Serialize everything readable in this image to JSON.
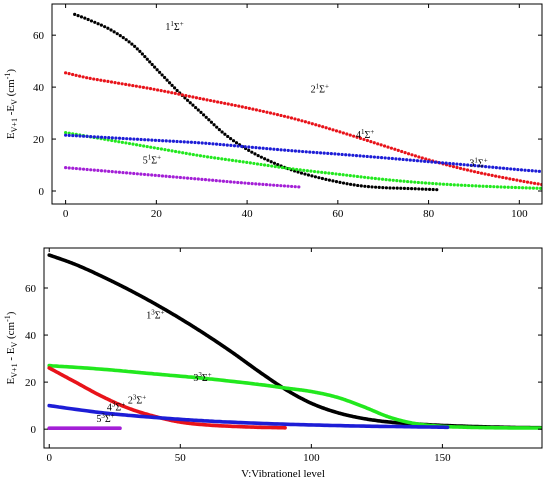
{
  "chart_data": [
    {
      "type": "scatter",
      "panel": "top",
      "title": "",
      "xlabel": "",
      "ylabel": "E_{v+1} - E_v (cm^{-1})",
      "ylabel_parts": {
        "main": "E",
        "sub1": "V+1",
        "mid": " -E",
        "sub2": "V",
        "unit": " (cm",
        "sup": "-1",
        "end": ")"
      },
      "xlim": [
        -3,
        105
      ],
      "ylim": [
        -5,
        72
      ],
      "xticks": [
        0,
        20,
        40,
        60,
        80,
        100
      ],
      "yticks": [
        0,
        20,
        40,
        60
      ],
      "grid": false,
      "series": [
        {
          "label": "1¹Σ⁺",
          "color": "#000000",
          "marker": "dot",
          "x": [
            2,
            5,
            10,
            15,
            20,
            25,
            30,
            35,
            40,
            45,
            50,
            55,
            60,
            65,
            70,
            75,
            82
          ],
          "y": [
            68,
            66,
            62,
            56,
            47,
            38,
            30,
            22,
            16,
            11.5,
            8,
            5.5,
            3.5,
            2,
            1.3,
            1,
            0.5
          ]
        },
        {
          "label": "2¹Σ⁺",
          "color": "#e8131a",
          "marker": "dot",
          "x": [
            0,
            5,
            10,
            20,
            30,
            40,
            50,
            60,
            70,
            80,
            90,
            100,
            105
          ],
          "y": [
            45.5,
            43.5,
            42,
            39,
            35.5,
            32,
            28,
            23,
            17.5,
            12,
            7.5,
            4,
            2.5
          ]
        },
        {
          "label": "3¹Σ⁺",
          "color": "#22e81e",
          "marker": "dot",
          "x": [
            0,
            10,
            20,
            30,
            40,
            50,
            60,
            70,
            80,
            90,
            100,
            105
          ],
          "y": [
            22.5,
            19.5,
            16.5,
            13.5,
            11,
            8.5,
            6.5,
            4.5,
            3,
            2,
            1.3,
            1
          ]
        },
        {
          "label": "4¹Σ⁺",
          "color": "#1d1dd6",
          "marker": "dot",
          "x": [
            0,
            10,
            20,
            30,
            40,
            50,
            60,
            70,
            80,
            90,
            100,
            105
          ],
          "y": [
            21.5,
            20.5,
            19.5,
            18.5,
            17,
            15.5,
            14.2,
            12.8,
            11.3,
            9.8,
            8.2,
            7.5
          ]
        },
        {
          "label": "5¹Σ⁺",
          "color": "#a31fd6",
          "marker": "dot",
          "x": [
            0,
            10,
            20,
            30,
            40,
            52
          ],
          "y": [
            9,
            7.5,
            6,
            4.5,
            3,
            1.5
          ]
        }
      ],
      "annotations": [
        {
          "series": "1¹Σ⁺",
          "text": "1",
          "sup": "1",
          "tail": "Σ",
          "sup2": "+",
          "at_x": 22,
          "at_y": 62
        },
        {
          "series": "2¹Σ⁺",
          "text": "2",
          "sup": "1",
          "tail": "Σ",
          "sup2": "+",
          "at_x": 54,
          "at_y": 38
        },
        {
          "series": "4¹Σ⁺",
          "text": "4",
          "sup": "1",
          "tail": "Σ",
          "sup2": "+",
          "at_x": 64,
          "at_y": 20.5
        },
        {
          "series": "3¹Σ⁺",
          "text": "3",
          "sup": "1",
          "tail": "Σ",
          "sup2": "+",
          "at_x": 89,
          "at_y": 9.5
        },
        {
          "series": "5¹Σ⁺",
          "text": "5",
          "sup": "1",
          "tail": "Σ",
          "sup2": "+",
          "at_x": 17,
          "at_y": 10.5
        }
      ]
    },
    {
      "type": "line",
      "panel": "bottom",
      "title": "",
      "xlabel": "V:Vibrationel level",
      "ylabel": "E_{v+1} - E_v (cm^{-1})",
      "ylabel_parts": {
        "main": "E",
        "sub1": "V+1",
        "mid": " - E",
        "sub2": "V",
        "unit": " (cm",
        "sup": "-1",
        "end": ")"
      },
      "xlim": [
        -2,
        188
      ],
      "ylim": [
        -8,
        77
      ],
      "xticks": [
        0,
        50,
        100,
        150
      ],
      "yticks": [
        0,
        20,
        40,
        60
      ],
      "grid": false,
      "series": [
        {
          "label": "1³Σ⁺",
          "color": "#000000",
          "x": [
            0,
            10,
            20,
            30,
            40,
            50,
            60,
            70,
            80,
            90,
            100,
            110,
            120,
            130,
            140,
            150,
            160,
            170,
            180,
            188
          ],
          "y": [
            74,
            70,
            65,
            59.5,
            53.5,
            47,
            40,
            32.5,
            24.5,
            17,
            11,
            7,
            4.5,
            3,
            2.2,
            1.6,
            1.2,
            0.9,
            0.7,
            0.6
          ]
        },
        {
          "label": "3³Σ⁺",
          "color": "#22e81e",
          "x": [
            0,
            20,
            40,
            60,
            80,
            90,
            100,
            110,
            120,
            130,
            140,
            150,
            160,
            170,
            188
          ],
          "y": [
            27,
            25.5,
            23.5,
            21.5,
            19,
            17.5,
            16,
            13.5,
            9.5,
            5,
            2.3,
            1.2,
            0.8,
            0.6,
            0.5
          ]
        },
        {
          "label": "2³Σ⁺",
          "color": "#e8131a",
          "x": [
            0,
            10,
            20,
            30,
            40,
            50,
            60,
            70,
            80,
            90
          ],
          "y": [
            26,
            20,
            14,
            9,
            5.5,
            3,
            1.8,
            1.2,
            0.8,
            0.6
          ]
        },
        {
          "label": "4³Σ⁺",
          "color": "#1d1dd6",
          "x": [
            0,
            20,
            40,
            60,
            80,
            100,
            120,
            140,
            152
          ],
          "y": [
            10,
            7,
            5,
            3.5,
            2.5,
            1.8,
            1.3,
            1,
            0.8
          ]
        },
        {
          "label": "5³Σ⁺",
          "color": "#a31fd6",
          "x": [
            0,
            10,
            20,
            27
          ],
          "y": [
            0.4,
            0.4,
            0.4,
            0.4
          ]
        }
      ],
      "annotations": [
        {
          "series": "1³Σ⁺",
          "text": "1",
          "sup": "3",
          "tail": "Σ",
          "sup2": "+",
          "at_x": 37,
          "at_y": 47
        },
        {
          "series": "3³Σ⁺",
          "text": "3",
          "sup": "3",
          "tail": "Σ",
          "sup2": "+",
          "at_x": 55,
          "at_y": 20.5
        },
        {
          "series": "2³Σ⁺",
          "text": "2",
          "sup": "3",
          "tail": "Σ",
          "sup2": "+",
          "at_x": 30,
          "at_y": 11
        },
        {
          "series": "4³Σ⁺",
          "text": "4",
          "sup": "3",
          "tail": "Σ",
          "sup2": "+",
          "at_x": 22,
          "at_y": 8
        },
        {
          "series": "5³Σ⁺",
          "text": "5",
          "sup": "3",
          "tail": "Σ",
          "sup2": "+",
          "at_x": 18,
          "at_y": 3
        }
      ]
    }
  ]
}
